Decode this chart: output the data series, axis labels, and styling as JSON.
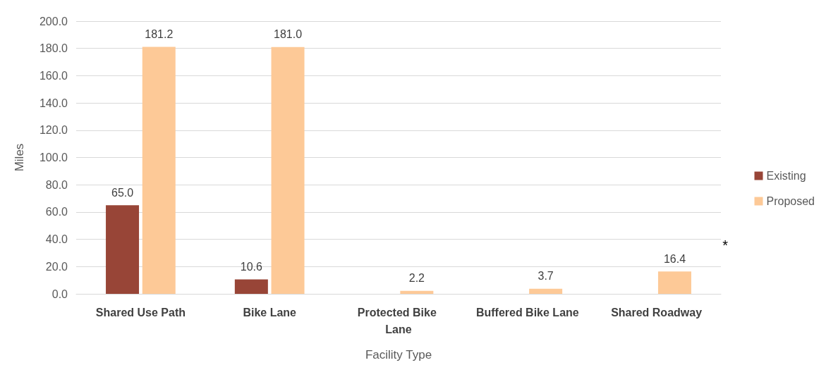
{
  "chart_data": {
    "type": "bar",
    "xlabel": "Facility Type",
    "ylabel": "Miles",
    "categories": [
      "Shared Use Path",
      "Bike Lane",
      "Protected Bike Lane",
      "Buffered Bike Lane",
      "Shared Roadway"
    ],
    "series": [
      {
        "name": "Existing",
        "color": "#984537",
        "values": [
          65.0,
          10.6,
          null,
          null,
          null
        ],
        "value_labels": [
          "65.0",
          "10.6",
          null,
          null,
          null
        ]
      },
      {
        "name": "Proposed",
        "color": "#fdc997",
        "values": [
          181.2,
          181.0,
          2.2,
          3.7,
          16.4
        ],
        "value_labels": [
          "181.2",
          "181.0",
          "2.2",
          "3.7",
          "16.4"
        ]
      }
    ],
    "ylim": [
      0,
      200
    ],
    "yticks": [
      {
        "value": 0,
        "label": "0.0"
      },
      {
        "value": 20,
        "label": "20.0"
      },
      {
        "value": 40,
        "label": "40.0"
      },
      {
        "value": 60,
        "label": "60.0"
      },
      {
        "value": 80,
        "label": "80.0"
      },
      {
        "value": 100,
        "label": "100.0"
      },
      {
        "value": 120,
        "label": "120.0"
      },
      {
        "value": 140,
        "label": "140.0"
      },
      {
        "value": 160,
        "label": "160.0"
      },
      {
        "value": 180,
        "label": "180.0"
      },
      {
        "value": 200,
        "label": "200.0"
      }
    ],
    "grid": "y",
    "legend": "right",
    "annotations": [
      "*"
    ]
  }
}
